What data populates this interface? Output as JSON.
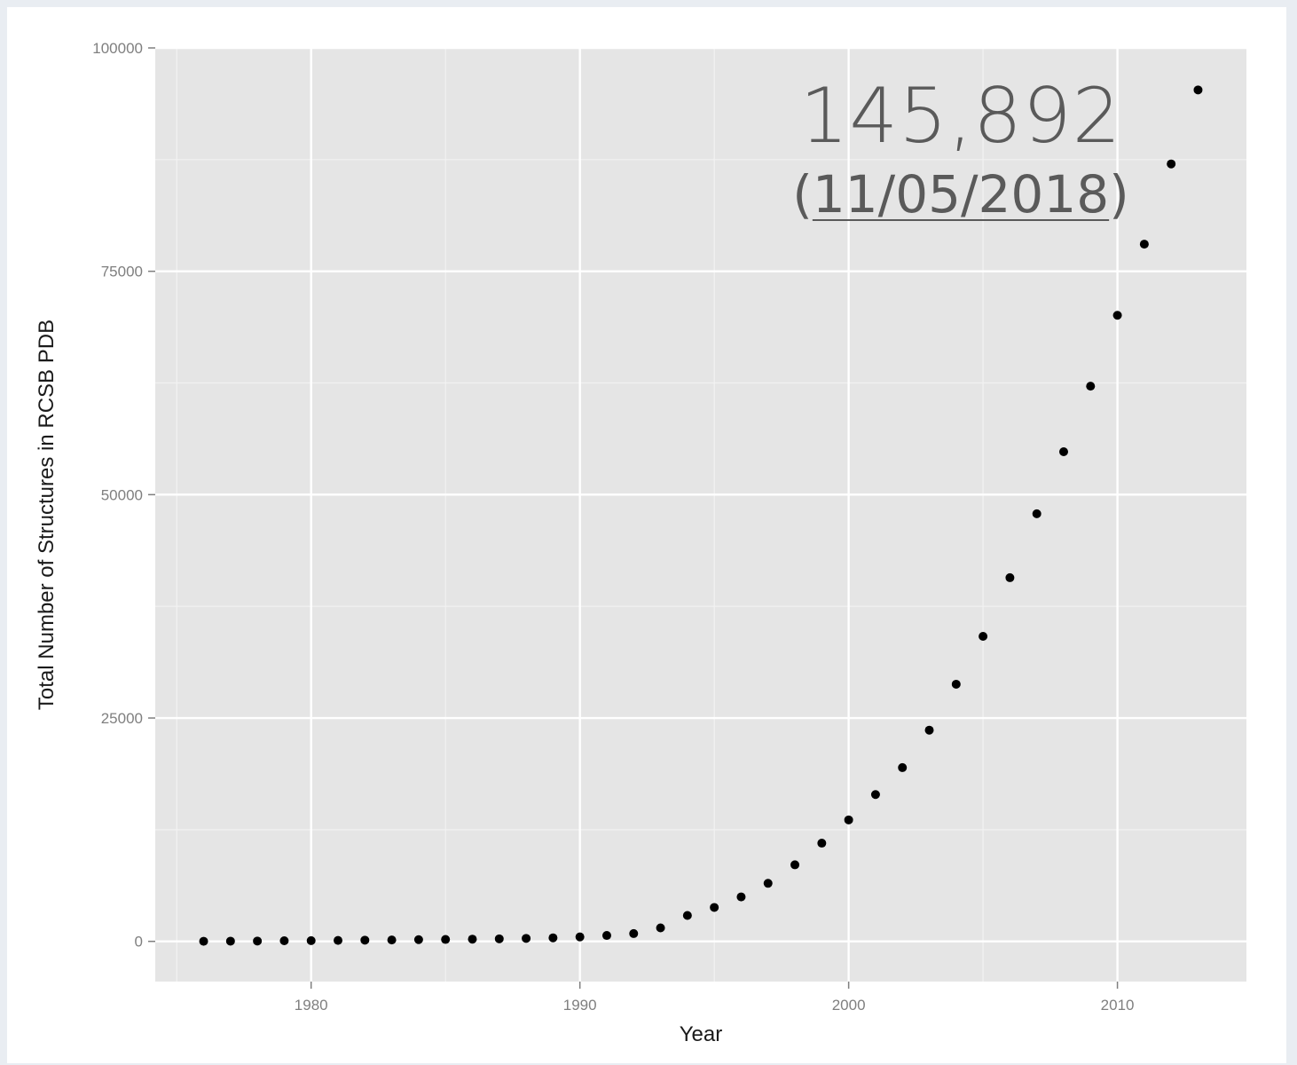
{
  "annotation": {
    "count": "145,892",
    "open_paren": "(",
    "date": "11/05/2018",
    "close_paren": ")"
  },
  "chart_data": {
    "type": "scatter",
    "xlabel": "Year",
    "ylabel": "Total Number of Structures in RCSB PDB",
    "xlim": [
      1974.2,
      2014.8
    ],
    "ylim": [
      -4500,
      100000
    ],
    "x_ticks": [
      1980,
      1990,
      2000,
      2010
    ],
    "x_tick_labels": [
      "1980",
      "1990",
      "2000",
      "2010"
    ],
    "y_ticks": [
      0,
      25000,
      50000,
      75000,
      100000
    ],
    "y_tick_labels": [
      "0",
      "25000",
      "50000",
      "75000",
      "100000"
    ],
    "grid": true,
    "background": "#e5e5e5",
    "point_color": "#000000",
    "x": [
      1976,
      1977,
      1978,
      1979,
      1980,
      1981,
      1982,
      1983,
      1984,
      1985,
      1986,
      1987,
      1988,
      1989,
      1990,
      1991,
      1992,
      1993,
      1994,
      1995,
      1996,
      1997,
      1998,
      1999,
      2000,
      2001,
      2002,
      2003,
      2004,
      2005,
      2006,
      2007,
      2008,
      2009,
      2010,
      2011,
      2012,
      2013
    ],
    "y": [
      13,
      23,
      38,
      69,
      80,
      106,
      136,
      154,
      191,
      214,
      247,
      284,
      334,
      398,
      498,
      660,
      871,
      1511,
      2903,
      3799,
      4980,
      6497,
      8572,
      10993,
      13596,
      16435,
      19449,
      23642,
      28782,
      34141,
      40706,
      47863,
      54801,
      62142,
      70077,
      78040,
      87018,
      95300
    ]
  }
}
